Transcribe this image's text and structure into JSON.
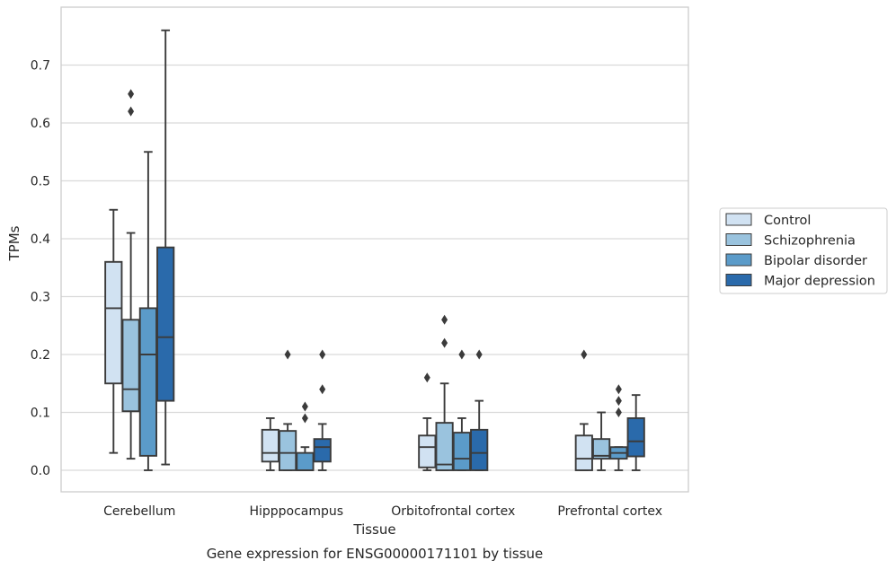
{
  "caption": "Gene expression for ENSG00000171101 by tissue",
  "chart_data": {
    "type": "box",
    "xlabel": "Tissue",
    "ylabel": "TPMs",
    "ylim": [
      -0.037,
      0.8
    ],
    "yticks": [
      "0.0",
      "0.1",
      "0.2",
      "0.3",
      "0.4",
      "0.5",
      "0.6",
      "0.7"
    ],
    "grid": "horizontal",
    "legend_position": "right, outside",
    "categories": [
      "Cerebellum",
      "Hipppocampus",
      "Orbitofrontal cortex",
      "Prefrontal cortex"
    ],
    "series": [
      {
        "name": "Control",
        "color": "#d1e2f2",
        "boxes": [
          {
            "whisker_low": 0.03,
            "q1": 0.15,
            "median": 0.28,
            "q3": 0.36,
            "whisker_high": 0.45,
            "outliers": []
          },
          {
            "whisker_low": 0.0,
            "q1": 0.015,
            "median": 0.03,
            "q3": 0.07,
            "whisker_high": 0.09,
            "outliers": []
          },
          {
            "whisker_low": 0.0,
            "q1": 0.005,
            "median": 0.04,
            "q3": 0.06,
            "whisker_high": 0.09,
            "outliers": [
              0.16
            ]
          },
          {
            "whisker_low": 0.0,
            "q1": 0.0,
            "median": 0.02,
            "q3": 0.06,
            "whisker_high": 0.08,
            "outliers": [
              0.2
            ]
          }
        ]
      },
      {
        "name": "Schizophrenia",
        "color": "#9ac3de",
        "boxes": [
          {
            "whisker_low": 0.02,
            "q1": 0.102,
            "median": 0.14,
            "q3": 0.26,
            "whisker_high": 0.41,
            "outliers": [
              0.62,
              0.65
            ]
          },
          {
            "whisker_low": 0.0,
            "q1": 0.0,
            "median": 0.03,
            "q3": 0.068,
            "whisker_high": 0.08,
            "outliers": [
              0.2
            ]
          },
          {
            "whisker_low": 0.0,
            "q1": 0.0,
            "median": 0.01,
            "q3": 0.082,
            "whisker_high": 0.15,
            "outliers": [
              0.22,
              0.26
            ]
          },
          {
            "whisker_low": 0.0,
            "q1": 0.02,
            "median": 0.025,
            "q3": 0.054,
            "whisker_high": 0.1,
            "outliers": []
          }
        ]
      },
      {
        "name": "Bipolar disorder",
        "color": "#5b9bc9",
        "boxes": [
          {
            "whisker_low": 0.0,
            "q1": 0.025,
            "median": 0.2,
            "q3": 0.28,
            "whisker_high": 0.55,
            "outliers": []
          },
          {
            "whisker_low": 0.0,
            "q1": 0.0,
            "median": 0.0,
            "q3": 0.03,
            "whisker_high": 0.04,
            "outliers": [
              0.09,
              0.11
            ]
          },
          {
            "whisker_low": 0.0,
            "q1": 0.0,
            "median": 0.02,
            "q3": 0.065,
            "whisker_high": 0.09,
            "outliers": [
              0.2
            ]
          },
          {
            "whisker_low": 0.0,
            "q1": 0.02,
            "median": 0.03,
            "q3": 0.04,
            "whisker_high": 0.04,
            "outliers": [
              0.1,
              0.12,
              0.14
            ]
          }
        ]
      },
      {
        "name": "Major depression",
        "color": "#2a6aab",
        "boxes": [
          {
            "whisker_low": 0.01,
            "q1": 0.12,
            "median": 0.23,
            "q3": 0.385,
            "whisker_high": 0.76,
            "outliers": []
          },
          {
            "whisker_low": 0.0,
            "q1": 0.015,
            "median": 0.04,
            "q3": 0.054,
            "whisker_high": 0.08,
            "outliers": [
              0.14,
              0.2
            ]
          },
          {
            "whisker_low": 0.0,
            "q1": 0.0,
            "median": 0.03,
            "q3": 0.07,
            "whisker_high": 0.12,
            "outliers": [
              0.2
            ]
          },
          {
            "whisker_low": 0.0,
            "q1": 0.024,
            "median": 0.05,
            "q3": 0.09,
            "whisker_high": 0.13,
            "outliers": []
          }
        ]
      }
    ]
  }
}
